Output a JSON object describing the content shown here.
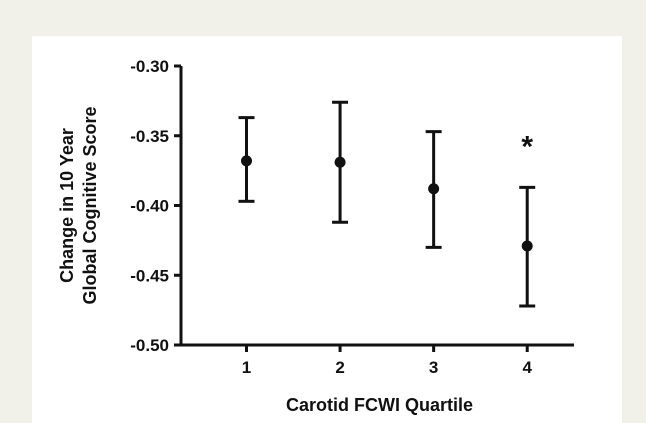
{
  "colors": {
    "outer_background": "#f2f1e9",
    "panel_background": "#ffffff",
    "ink": "#111111"
  },
  "chart_data": {
    "type": "scatter",
    "title": "",
    "xlabel": "Carotid FCWI Quartile",
    "ylabel_lines": [
      "Change in 10 Year",
      "Global Cognitive Score"
    ],
    "x": [
      1,
      2,
      3,
      4
    ],
    "y": [
      -0.368,
      -0.369,
      -0.388,
      -0.429
    ],
    "error_low": [
      -0.397,
      -0.412,
      -0.43,
      -0.472
    ],
    "error_high": [
      -0.337,
      -0.326,
      -0.347,
      -0.387
    ],
    "xlim": [
      0.3,
      4.5
    ],
    "ylim": [
      -0.5,
      -0.3
    ],
    "xticks": [
      "1",
      "2",
      "3",
      "4"
    ],
    "yticks": [
      "-0.30",
      "-0.35",
      "-0.40",
      "-0.45",
      "-0.50"
    ],
    "ytick_values": [
      -0.3,
      -0.35,
      -0.4,
      -0.45,
      -0.5
    ],
    "annotations": [
      {
        "text": "*",
        "x": 4,
        "y": -0.355
      }
    ],
    "grid": false,
    "legend": "none"
  }
}
